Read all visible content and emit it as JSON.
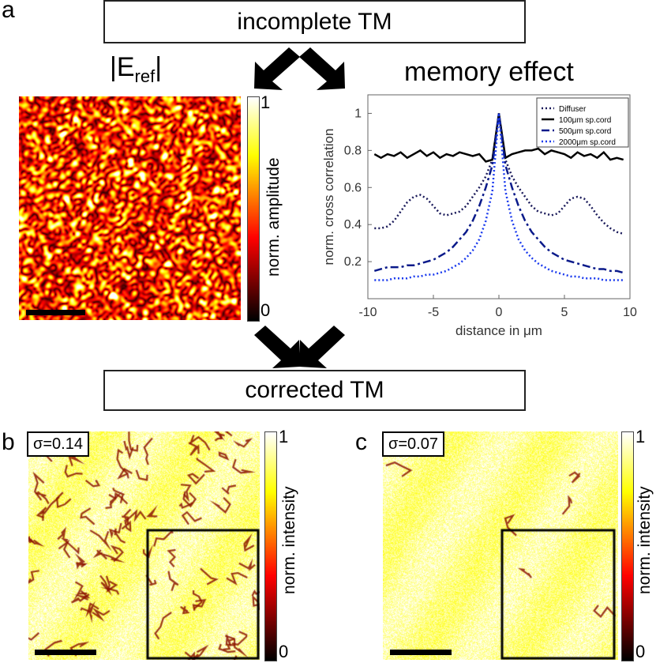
{
  "panels": {
    "a": {
      "letter": "a"
    },
    "b": {
      "letter": "b",
      "sigma": "σ=0.14"
    },
    "c": {
      "letter": "c",
      "sigma": "σ=0.07"
    }
  },
  "boxes": {
    "incomplete": "incomplete TM",
    "corrected": "corrected TM"
  },
  "field_label": {
    "main": "|E",
    "sub": "ref",
    "end": "|"
  },
  "colorbar_a": {
    "max": "1",
    "min": "0",
    "label": "norm. amplitude"
  },
  "colorbar_b": {
    "max": "1",
    "min": "0",
    "label": "norm. intensity"
  },
  "colorbar_c": {
    "max": "1",
    "min": "0",
    "label": "norm. intensity"
  },
  "colors": {
    "hot_dark": "#000000",
    "hot_mid": "#e02000",
    "hot_high": "#ffd000",
    "hot_white": "#ffffff"
  },
  "chart_data": {
    "type": "line",
    "title": "memory effect",
    "xlabel": "distance in μm",
    "ylabel": "norm. cross correlation",
    "xlim": [
      -10,
      10
    ],
    "ylim": [
      0,
      1.1
    ],
    "xticks": [
      -10,
      -5,
      0,
      5,
      10
    ],
    "yticks": [
      0.2,
      0.4,
      0.6,
      0.8,
      1
    ],
    "legend_position": "top-right",
    "series": [
      {
        "name": "Diffuser",
        "color": "#1a1a5a",
        "style": "dotted",
        "x": [
          -9.5,
          -9,
          -8.5,
          -8,
          -7.5,
          -7,
          -6.5,
          -6,
          -5.5,
          -5,
          -4.5,
          -4,
          -3.5,
          -3,
          -2.5,
          -2,
          -1.5,
          -1,
          -0.5,
          0,
          0.5,
          1,
          1.5,
          2,
          2.5,
          3,
          3.5,
          4,
          4.5,
          5,
          5.5,
          6,
          6.5,
          7,
          7.5,
          8,
          8.5,
          9,
          9.5
        ],
        "y": [
          0.38,
          0.38,
          0.39,
          0.42,
          0.47,
          0.52,
          0.55,
          0.56,
          0.54,
          0.5,
          0.46,
          0.45,
          0.46,
          0.47,
          0.5,
          0.55,
          0.6,
          0.66,
          0.75,
          1.0,
          0.75,
          0.66,
          0.6,
          0.55,
          0.5,
          0.47,
          0.46,
          0.45,
          0.46,
          0.5,
          0.54,
          0.55,
          0.54,
          0.5,
          0.45,
          0.41,
          0.38,
          0.36,
          0.35
        ]
      },
      {
        "name": "100μm sp.cord",
        "color": "#000000",
        "style": "solid",
        "x": [
          -9.5,
          -9,
          -8.5,
          -8,
          -7.5,
          -7,
          -6.5,
          -6,
          -5.5,
          -5,
          -4.5,
          -4,
          -3.5,
          -3,
          -2.5,
          -2,
          -1.5,
          -1,
          -0.5,
          0,
          0.5,
          1,
          1.5,
          2,
          2.5,
          3,
          3.5,
          4,
          4.5,
          5,
          5.5,
          6,
          6.5,
          7,
          7.5,
          8,
          8.5,
          9,
          9.5
        ],
        "y": [
          0.78,
          0.76,
          0.78,
          0.77,
          0.79,
          0.76,
          0.78,
          0.8,
          0.77,
          0.79,
          0.76,
          0.78,
          0.77,
          0.79,
          0.78,
          0.77,
          0.78,
          0.74,
          0.75,
          1.0,
          0.76,
          0.78,
          0.79,
          0.8,
          0.8,
          0.81,
          0.78,
          0.8,
          0.79,
          0.78,
          0.76,
          0.79,
          0.77,
          0.78,
          0.76,
          0.79,
          0.75,
          0.76,
          0.75
        ]
      },
      {
        "name": "500μm sp.cord",
        "color": "#0a1a8a",
        "style": "dashdot",
        "x": [
          -9.5,
          -9,
          -8.5,
          -8,
          -7.5,
          -7,
          -6.5,
          -6,
          -5.5,
          -5,
          -4.5,
          -4,
          -3.5,
          -3,
          -2.5,
          -2,
          -1.5,
          -1,
          -0.5,
          0,
          0.5,
          1,
          1.5,
          2,
          2.5,
          3,
          3.5,
          4,
          4.5,
          5,
          5.5,
          6,
          6.5,
          7,
          7.5,
          8,
          8.5,
          9,
          9.5
        ],
        "y": [
          0.15,
          0.16,
          0.17,
          0.17,
          0.17,
          0.18,
          0.18,
          0.19,
          0.2,
          0.21,
          0.23,
          0.25,
          0.28,
          0.32,
          0.36,
          0.42,
          0.5,
          0.6,
          0.72,
          1.0,
          0.72,
          0.6,
          0.5,
          0.42,
          0.36,
          0.32,
          0.28,
          0.25,
          0.23,
          0.21,
          0.2,
          0.19,
          0.18,
          0.17,
          0.16,
          0.16,
          0.15,
          0.15,
          0.14
        ]
      },
      {
        "name": "2000μm sp.cord",
        "color": "#1a3aee",
        "style": "dotted",
        "x": [
          -9.5,
          -9,
          -8.5,
          -8,
          -7.5,
          -7,
          -6.5,
          -6,
          -5.5,
          -5,
          -4.5,
          -4,
          -3.5,
          -3,
          -2.5,
          -2,
          -1.5,
          -1,
          -0.5,
          0,
          0.5,
          1,
          1.5,
          2,
          2.5,
          3,
          3.5,
          4,
          4.5,
          5,
          5.5,
          6,
          6.5,
          7,
          7.5,
          8,
          8.5,
          9,
          9.5
        ],
        "y": [
          0.1,
          0.1,
          0.1,
          0.11,
          0.11,
          0.11,
          0.12,
          0.12,
          0.13,
          0.13,
          0.14,
          0.15,
          0.17,
          0.19,
          0.22,
          0.26,
          0.32,
          0.42,
          0.58,
          1.0,
          0.58,
          0.42,
          0.32,
          0.26,
          0.22,
          0.19,
          0.17,
          0.15,
          0.14,
          0.13,
          0.12,
          0.12,
          0.11,
          0.11,
          0.11,
          0.1,
          0.1,
          0.1,
          0.1
        ]
      }
    ]
  }
}
